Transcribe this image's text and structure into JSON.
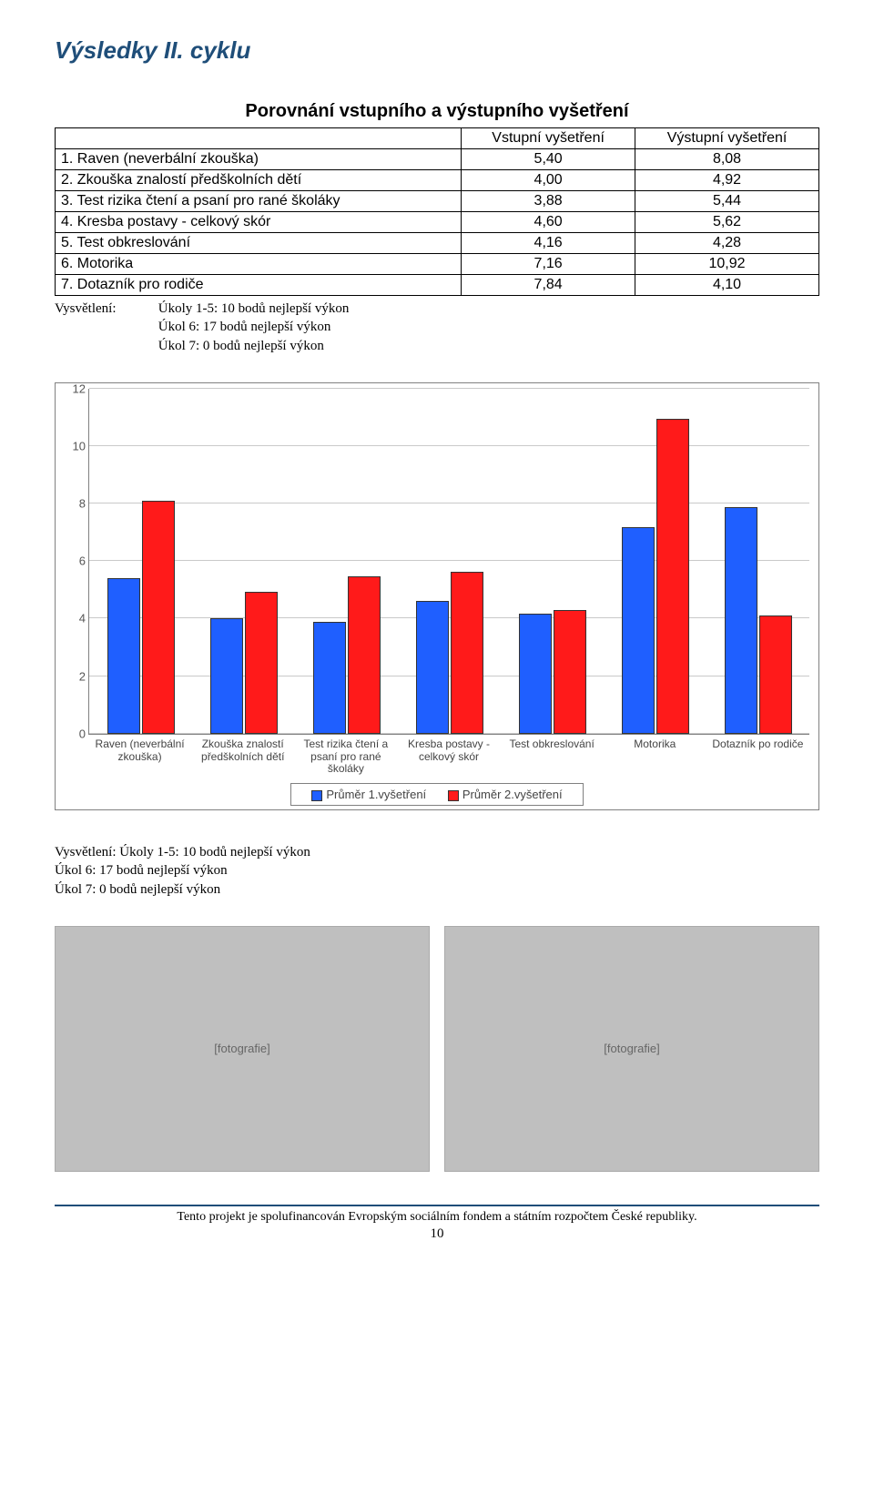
{
  "title": "Výsledky II. cyklu",
  "subtitle": "Porovnání vstupního a výstupního vyšetření",
  "table": {
    "headers": [
      "",
      "Vstupní vyšetření",
      "Výstupní vyšetření"
    ],
    "rows": [
      [
        "1. Raven (neverbální zkouška)",
        "5,40",
        "8,08"
      ],
      [
        "2. Zkouška znalostí předškolních dětí",
        "4,00",
        "4,92"
      ],
      [
        "3. Test rizika čtení a psaní pro rané školáky",
        "3,88",
        "5,44"
      ],
      [
        "4. Kresba postavy - celkový skór",
        "4,60",
        "5,62"
      ],
      [
        "5. Test obkreslování",
        "4,16",
        "4,28"
      ],
      [
        "6. Motorika",
        "7,16",
        "10,92"
      ],
      [
        "7. Dotazník pro rodiče",
        "7,84",
        "4,10"
      ]
    ]
  },
  "explain": {
    "label": "Vysvětlení:",
    "lines": [
      "Úkoly 1-5: 10 bodů nejlepší výkon",
      "Úkol 6: 17 bodů nejlepší výkon",
      "Úkol 7: 0 bodů nejlepší výkon"
    ]
  },
  "chart": {
    "type": "bar",
    "ymax": 12,
    "ytick_step": 2,
    "yticks": [
      0,
      2,
      4,
      6,
      8,
      10,
      12
    ],
    "grid_color": "#c9c9c9",
    "categories": [
      "Raven (neverbální zkouška)",
      "Zkouška znalostí předškolních dětí",
      "Test rizika čtení a psaní pro rané školáky",
      "Kresba postavy - celkový skór",
      "Test obkreslování",
      "Motorika",
      "Dotazník po rodiče"
    ],
    "series": [
      {
        "name": "Průměr 1.vyšetření",
        "color": "#1f5fff",
        "values": [
          5.4,
          4.0,
          3.88,
          4.6,
          4.16,
          7.16,
          7.84
        ]
      },
      {
        "name": "Průměr 2.vyšetření",
        "color": "#ff1a1a",
        "values": [
          8.08,
          4.92,
          5.44,
          5.62,
          4.28,
          10.92,
          4.1
        ]
      }
    ],
    "legend_labels": [
      "Průměr 1.vyšetření",
      "Průměr 2.vyšetření"
    ]
  },
  "photo_placeholders": [
    "[fotografie]",
    "[fotografie]"
  ],
  "footer": "Tento projekt je spolufinancován Evropským sociálním fondem a státním rozpočtem České republiky.",
  "page_number": "10"
}
